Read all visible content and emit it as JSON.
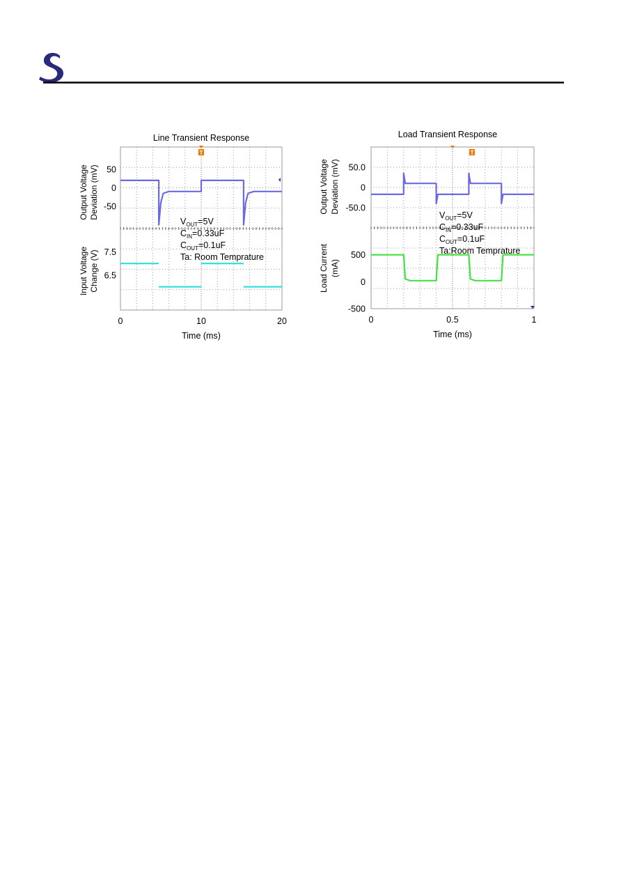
{
  "header": {
    "logo_name": "s-logo-icon"
  },
  "colors": {
    "output_trace": "#6a6ae6",
    "input_trace": "#36e0e0",
    "current_trace": "#44e044",
    "marker": "#f07800",
    "grid": "#9a9a9a",
    "logo": "#2a2a7a"
  },
  "chart_data": [
    {
      "type": "line",
      "title": "Line Transient Response",
      "xlabel": "Time (ms)",
      "xlim": [
        0,
        20
      ],
      "xticks": [
        "0",
        "10",
        "20"
      ],
      "xtick_values": [
        0,
        10,
        20
      ],
      "grid": true,
      "trigger_marker": "T",
      "annotations": [
        {
          "base": "V",
          "sub": "OUT",
          "rest": "=5V"
        },
        {
          "base": "C",
          "sub": "IN",
          "rest": "=0.33uF"
        },
        {
          "base": "C",
          "sub": "OUT",
          "rest": "=0.1uF"
        },
        {
          "base": "Ta: Room Temprature",
          "sub": "",
          "rest": ""
        }
      ],
      "panels": [
        {
          "ylabel": [
            "Output Voltage",
            "Deviation (mV)"
          ],
          "yticks": [
            "50",
            "0",
            "-50"
          ],
          "ytick_values": [
            50,
            0,
            -50
          ],
          "ylim": [
            -110,
            110
          ],
          "series": [
            {
              "color": "#6a6ae6",
              "points": [
                [
                  0,
                  20
                ],
                [
                  4.75,
                  20
                ],
                [
                  4.75,
                  -100
                ],
                [
                  5.0,
                  -40
                ],
                [
                  5.3,
                  -15
                ],
                [
                  6,
                  -10
                ],
                [
                  10,
                  -10
                ],
                [
                  10,
                  20
                ],
                [
                  15.25,
                  20
                ],
                [
                  15.25,
                  -100
                ],
                [
                  15.5,
                  -40
                ],
                [
                  15.8,
                  -15
                ],
                [
                  16.5,
                  -10
                ],
                [
                  20,
                  -10
                ]
              ]
            }
          ]
        },
        {
          "ylabel": [
            "Input Voltage",
            "Change (V)"
          ],
          "yticks": [
            "7.5",
            "6.5"
          ],
          "ytick_values": [
            7.5,
            6.5
          ],
          "ylim": [
            5.0,
            8.5
          ],
          "series": [
            {
              "color": "#36e0e0",
              "segments": [
                [
                  [
                    0,
                    7.0
                  ],
                  [
                    4.75,
                    7.0
                  ]
                ],
                [
                  [
                    4.75,
                    6.0
                  ],
                  [
                    10,
                    6.0
                  ]
                ],
                [
                  [
                    10,
                    7.0
                  ],
                  [
                    15.25,
                    7.0
                  ]
                ],
                [
                  [
                    15.25,
                    6.0
                  ],
                  [
                    20,
                    6.0
                  ]
                ]
              ]
            }
          ]
        }
      ]
    },
    {
      "type": "line",
      "title": "Load Transient Response",
      "xlabel": "Time (ms)",
      "xlim": [
        0,
        1
      ],
      "xticks": [
        "0",
        "0.5",
        "1"
      ],
      "xtick_values": [
        0,
        0.5,
        1
      ],
      "grid": true,
      "trigger_marker": "T",
      "annotations": [
        {
          "base": "V",
          "sub": "OUT",
          "rest": "=5V"
        },
        {
          "base": "C",
          "sub": "IN",
          "rest": "=0.33uF"
        },
        {
          "base": "C",
          "sub": "OUT",
          "rest": "=0.1uF"
        },
        {
          "base": "Ta:Room Temprature",
          "sub": "",
          "rest": ""
        }
      ],
      "panels": [
        {
          "ylabel": [
            "Output Voltage",
            "Deviation (mV)"
          ],
          "yticks": [
            "50.0",
            "0",
            "-50.0"
          ],
          "ytick_values": [
            50,
            0,
            -50
          ],
          "ylim": [
            -100,
            100
          ],
          "series": [
            {
              "color": "#6a6ae6",
              "points": [
                [
                  0,
                  -17
                ],
                [
                  0.2,
                  -17
                ],
                [
                  0.2,
                  35
                ],
                [
                  0.21,
                  10
                ],
                [
                  0.4,
                  10
                ],
                [
                  0.4,
                  -40
                ],
                [
                  0.41,
                  -17
                ],
                [
                  0.6,
                  -17
                ],
                [
                  0.6,
                  35
                ],
                [
                  0.61,
                  10
                ],
                [
                  0.8,
                  10
                ],
                [
                  0.8,
                  -40
                ],
                [
                  0.81,
                  -17
                ],
                [
                  1,
                  -17
                ]
              ]
            }
          ]
        },
        {
          "ylabel": [
            "Load Current",
            "(mA)"
          ],
          "yticks": [
            "500",
            "0",
            "-500"
          ],
          "ytick_values": [
            500,
            0,
            -500
          ],
          "ylim": [
            -500,
            1000
          ],
          "series": [
            {
              "color": "#44e044",
              "points": [
                [
                  0,
                  500
                ],
                [
                  0.2,
                  500
                ],
                [
                  0.21,
                  50
                ],
                [
                  0.24,
                  20
                ],
                [
                  0.4,
                  20
                ],
                [
                  0.41,
                  500
                ],
                [
                  0.6,
                  500
                ],
                [
                  0.61,
                  50
                ],
                [
                  0.64,
                  20
                ],
                [
                  0.8,
                  20
                ],
                [
                  0.81,
                  500
                ],
                [
                  1,
                  500
                ]
              ]
            }
          ]
        }
      ]
    }
  ]
}
